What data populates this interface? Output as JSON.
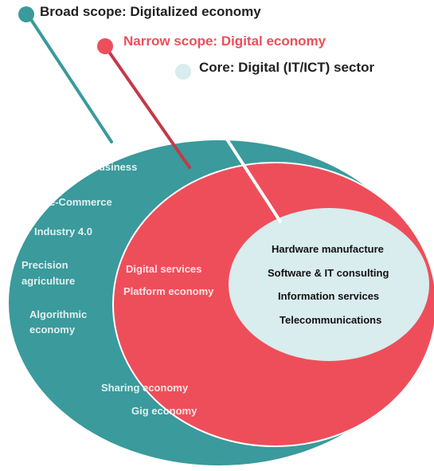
{
  "colors": {
    "broad": "#3A9A9C",
    "narrow": "#EE4E5A",
    "core": "#D9ECEE",
    "core_text": "#111111",
    "zone_text": "#ffffff",
    "outline": "#ffffff"
  },
  "legend": {
    "broad": "Broad scope: Digitalized economy",
    "narrow": "Narrow scope: Digital economy",
    "core": "Core: Digital (IT/ICT) sector"
  },
  "broad_items": [
    "e-Business",
    "e-Commerce",
    "Industry 4.0",
    "Precision",
    "agriculture",
    "Algorithmic",
    "economy",
    "Sharing economy",
    "Gig economy"
  ],
  "narrow_items": [
    "Digital services",
    "Platform economy"
  ],
  "core_items": [
    "Hardware manufacture",
    "Software & IT consulting",
    "Information services",
    "Telecommunications"
  ]
}
